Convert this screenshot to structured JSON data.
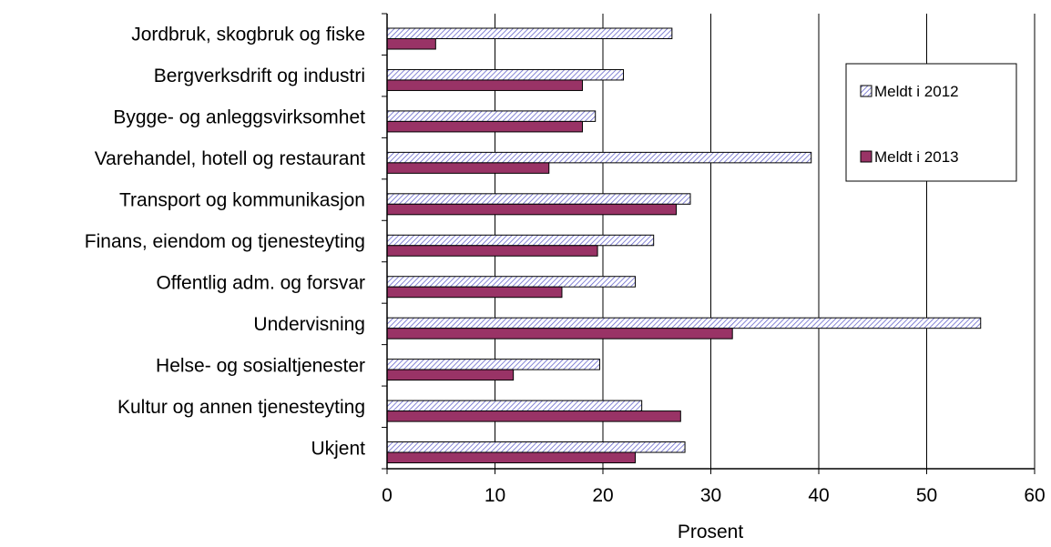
{
  "chart_data": {
    "type": "bar",
    "orientation": "horizontal",
    "title": "",
    "xlabel": "Prosent",
    "ylabel": "",
    "xlim": [
      0,
      60
    ],
    "xticks": [
      0,
      10,
      20,
      30,
      40,
      50,
      60
    ],
    "grid": "vertical",
    "legend_position": "right",
    "categories": [
      "Jordbruk, skogbruk og fiske",
      "Bergverksdrift og industri",
      "Bygge- og anleggsvirksomhet",
      "Varehandel,  hotell og restaurant",
      "Transport og kommunikasjon",
      "Finans, eiendom og tjenesteyting",
      "Offentlig adm. og forsvar",
      "Undervisning",
      "Helse- og sosialtjenester",
      "Kultur og annen tjenesteyting",
      "Ukjent"
    ],
    "series": [
      {
        "name": "Meldt i 2012",
        "pattern": "diagonal-hatch",
        "color": "#9999ff",
        "values": [
          26.4,
          21.9,
          19.3,
          39.3,
          28.1,
          24.7,
          23.0,
          55.0,
          19.7,
          23.6,
          27.6
        ]
      },
      {
        "name": "Meldt i 2013",
        "pattern": "solid",
        "color": "#993366",
        "values": [
          4.5,
          18.1,
          18.1,
          15.0,
          26.8,
          19.5,
          16.2,
          32.0,
          11.7,
          27.2,
          23.0
        ]
      }
    ]
  }
}
